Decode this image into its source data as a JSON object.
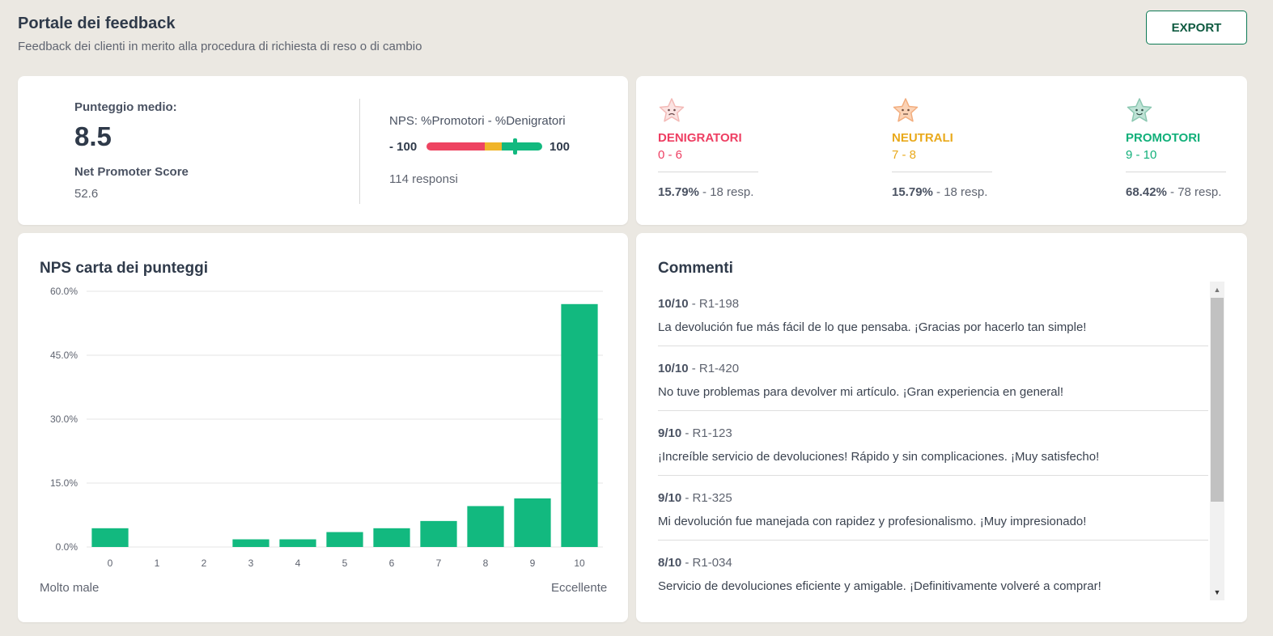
{
  "header": {
    "title": "Portale dei feedback",
    "subtitle": "Feedback dei clienti in merito alla procedura di richiesta di reso o di cambio",
    "export_label": "EXPORT"
  },
  "score": {
    "avg_label": "Punteggio medio:",
    "avg_value": "8.5",
    "nps_label": "Net Promoter Score",
    "nps_value": "52.6",
    "formula": "NPS: %Promotori - %Denigratori",
    "scale_min": "- 100",
    "scale_max": "100",
    "responses": "114 responsi",
    "gauge_value": 52.6,
    "gauge_colors": {
      "detractor": "#ee4461",
      "neutral": "#f0b429",
      "promoter": "#12b97f"
    }
  },
  "categories": [
    {
      "name": "DENIGRATORI",
      "range": "0 - 6",
      "pct": "15.79%",
      "resp": " - 18 resp.",
      "color": "#ee3e62",
      "icon": "sad-star-icon"
    },
    {
      "name": "NEUTRALI",
      "range": "7 - 8",
      "pct": "15.79%",
      "resp": " - 18 resp.",
      "color": "#e9a91b",
      "icon": "neutral-star-icon"
    },
    {
      "name": "PROMOTORI",
      "range": "9 - 10",
      "pct": "68.42%",
      "resp": " - 78 resp.",
      "color": "#12b07a",
      "icon": "happy-star-icon"
    }
  ],
  "chart_card": {
    "title": "NPS carta dei punteggi",
    "axis_left": "Molto male",
    "axis_right": "Eccellente"
  },
  "chart_data": {
    "type": "bar",
    "title": "NPS carta dei punteggi",
    "categories": [
      "0",
      "1",
      "2",
      "3",
      "4",
      "5",
      "6",
      "7",
      "8",
      "9",
      "10"
    ],
    "values": [
      4.4,
      0,
      0,
      1.8,
      1.8,
      3.5,
      4.4,
      6.1,
      9.6,
      11.4,
      57.0
    ],
    "ylim": [
      0,
      60
    ],
    "yticks": [
      "0.0%",
      "15.0%",
      "30.0%",
      "45.0%",
      "60.0%"
    ],
    "ytick_values": [
      0,
      15,
      30,
      45,
      60
    ],
    "bar_color": "#12b97f",
    "grid": true
  },
  "comments": {
    "title": "Commenti",
    "items": [
      {
        "score": "10/10",
        "ref": " - R1-198",
        "text": "La devolución fue más fácil de lo que pensaba. ¡Gracias por hacerlo tan simple!"
      },
      {
        "score": "10/10",
        "ref": " - R1-420",
        "text": "No tuve problemas para devolver mi artículo. ¡Gran experiencia en general!"
      },
      {
        "score": "9/10",
        "ref": " - R1-123",
        "text": "¡Increíble servicio de devoluciones! Rápido y sin complicaciones. ¡Muy satisfecho!"
      },
      {
        "score": "9/10",
        "ref": " - R1-325",
        "text": "Mi devolución fue manejada con rapidez y profesionalismo. ¡Muy impresionado!"
      },
      {
        "score": "8/10",
        "ref": " - R1-034",
        "text": "Servicio de devoluciones eficiente y amigable. ¡Definitivamente volveré a comprar!"
      }
    ]
  }
}
